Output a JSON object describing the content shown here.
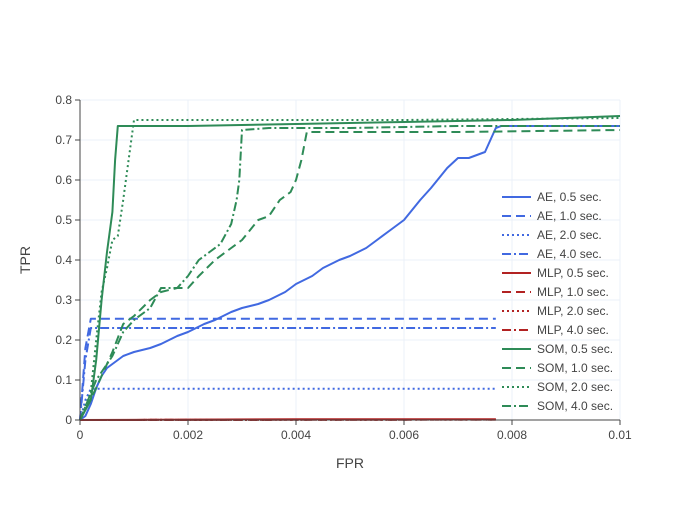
{
  "chart_data": {
    "type": "line",
    "title": "",
    "xlabel": "FPR",
    "ylabel": "TPR",
    "xlim": [
      0,
      0.01
    ],
    "ylim": [
      0,
      0.8
    ],
    "x_ticks": [
      0,
      0.002,
      0.004,
      0.006,
      0.008,
      0.01
    ],
    "x_tick_labels": [
      "0",
      "0.002",
      "0.004",
      "0.006",
      "0.008",
      "0.01"
    ],
    "y_ticks": [
      0,
      0.1,
      0.2,
      0.3,
      0.4,
      0.5,
      0.6,
      0.7,
      0.8
    ],
    "y_tick_labels": [
      "0",
      "0.1",
      "0.2",
      "0.3",
      "0.4",
      "0.5",
      "0.6",
      "0.7",
      "0.8"
    ],
    "grid": true,
    "legend_position": "right",
    "series": [
      {
        "name": "AE, 0.5 sec.",
        "color": "#4169E1",
        "dash": "solid",
        "x": [
          0,
          0.0001,
          0.0002,
          0.0003,
          0.0004,
          0.0005,
          0.0006,
          0.0007,
          0.0008,
          0.001,
          0.0013,
          0.0015,
          0.0018,
          0.002,
          0.0023,
          0.0025,
          0.0028,
          0.003,
          0.0033,
          0.0035,
          0.0038,
          0.004,
          0.0043,
          0.0045,
          0.0048,
          0.005,
          0.0053,
          0.0055,
          0.0058,
          0.006,
          0.0063,
          0.0065,
          0.0068,
          0.007,
          0.0072,
          0.0075,
          0.0076,
          0.0077,
          0.0078,
          0.008,
          0.009,
          0.01
        ],
        "y": [
          0,
          0.01,
          0.04,
          0.08,
          0.11,
          0.13,
          0.14,
          0.15,
          0.16,
          0.17,
          0.18,
          0.19,
          0.21,
          0.22,
          0.24,
          0.25,
          0.27,
          0.28,
          0.29,
          0.3,
          0.32,
          0.34,
          0.36,
          0.38,
          0.4,
          0.41,
          0.43,
          0.45,
          0.48,
          0.5,
          0.55,
          0.58,
          0.63,
          0.655,
          0.655,
          0.67,
          0.7,
          0.73,
          0.735,
          0.735,
          0.735,
          0.735
        ]
      },
      {
        "name": "AE, 1.0 sec.",
        "color": "#4169E1",
        "dash": "dash",
        "x": [
          0,
          0.0001,
          0.0002,
          0.0077
        ],
        "y": [
          0,
          0.18,
          0.253,
          0.253
        ]
      },
      {
        "name": "AE, 2.0 sec.",
        "color": "#4169E1",
        "dash": "dot",
        "x": [
          0,
          0.0001,
          0.0002,
          0.0077
        ],
        "y": [
          0,
          0.05,
          0.078,
          0.078
        ]
      },
      {
        "name": "AE, 4.0 sec.",
        "color": "#4169E1",
        "dash": "dashdot",
        "x": [
          0,
          0.0001,
          0.0002,
          0.0077
        ],
        "y": [
          0,
          0.15,
          0.23,
          0.23
        ]
      },
      {
        "name": "MLP, 0.5 sec.",
        "color": "#B22222",
        "dash": "solid",
        "x": [
          0,
          0.002,
          0.004,
          0.006,
          0.0077
        ],
        "y": [
          0,
          0.001,
          0.002,
          0.002,
          0.002
        ]
      },
      {
        "name": "MLP, 1.0 sec.",
        "color": "#B22222",
        "dash": "dash",
        "x": [
          0,
          0.0077
        ],
        "y": [
          0,
          0.001
        ]
      },
      {
        "name": "MLP, 2.0 sec.",
        "color": "#B22222",
        "dash": "dot",
        "x": [
          0,
          0.0077
        ],
        "y": [
          0,
          0.001
        ]
      },
      {
        "name": "MLP, 4.0 sec.",
        "color": "#B22222",
        "dash": "dashdot",
        "x": [
          0,
          0.0077
        ],
        "y": [
          0,
          0.001
        ]
      },
      {
        "name": "SOM, 0.5 sec.",
        "color": "#2E8B57",
        "dash": "solid",
        "x": [
          0,
          0.0002,
          0.0003,
          0.0004,
          0.0005,
          0.0006,
          0.00065,
          0.0007,
          0.002,
          0.004,
          0.006,
          0.008,
          0.01
        ],
        "y": [
          0,
          0.05,
          0.15,
          0.3,
          0.42,
          0.52,
          0.65,
          0.735,
          0.735,
          0.74,
          0.745,
          0.75,
          0.76
        ]
      },
      {
        "name": "SOM, 1.0 sec.",
        "color": "#2E8B57",
        "dash": "dash",
        "x": [
          0,
          0.0003,
          0.0006,
          0.0008,
          0.001,
          0.0013,
          0.0015,
          0.0018,
          0.002,
          0.0022,
          0.0025,
          0.0028,
          0.003,
          0.0033,
          0.0035,
          0.0037,
          0.0039,
          0.004,
          0.0041,
          0.0042,
          0.005,
          0.007,
          0.01
        ],
        "y": [
          0,
          0.08,
          0.17,
          0.24,
          0.26,
          0.3,
          0.32,
          0.33,
          0.33,
          0.36,
          0.4,
          0.43,
          0.45,
          0.5,
          0.51,
          0.55,
          0.57,
          0.6,
          0.65,
          0.72,
          0.72,
          0.72,
          0.725
        ]
      },
      {
        "name": "SOM, 2.0 sec.",
        "color": "#2E8B57",
        "dash": "dot",
        "x": [
          0,
          0.0002,
          0.0003,
          0.0004,
          0.0005,
          0.0006,
          0.0007,
          0.0008,
          0.0009,
          0.001,
          0.003,
          0.006,
          0.01
        ],
        "y": [
          0,
          0.07,
          0.2,
          0.32,
          0.38,
          0.45,
          0.46,
          0.55,
          0.65,
          0.75,
          0.75,
          0.75,
          0.755
        ]
      },
      {
        "name": "SOM, 4.0 sec.",
        "color": "#2E8B57",
        "dash": "dashdot",
        "x": [
          0,
          0.0003,
          0.0006,
          0.0008,
          0.001,
          0.0013,
          0.0015,
          0.0018,
          0.002,
          0.0022,
          0.0024,
          0.0026,
          0.0028,
          0.0029,
          0.00295,
          0.003,
          0.0035,
          0.005,
          0.007,
          0.01
        ],
        "y": [
          0,
          0.1,
          0.16,
          0.22,
          0.25,
          0.28,
          0.33,
          0.33,
          0.36,
          0.4,
          0.42,
          0.44,
          0.49,
          0.55,
          0.6,
          0.725,
          0.73,
          0.73,
          0.735,
          0.735
        ]
      }
    ]
  }
}
